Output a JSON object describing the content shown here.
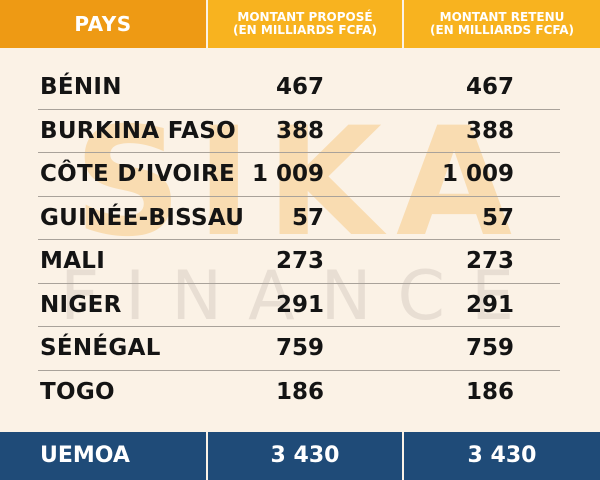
{
  "header": {
    "col_country": "PAYS",
    "col_proposed_line1": "MONTANT PROPOSÉ",
    "col_proposed_line2": "(EN MILLIARDS FCFA)",
    "col_retained_line1": "MONTANT RETENU",
    "col_retained_line2": "(EN MILLIARDS FCFA)"
  },
  "watermark": {
    "line1": "SIKA",
    "line2": "FINANCE"
  },
  "rows": [
    {
      "country": "BÉNIN",
      "proposed": "467",
      "retained": "467"
    },
    {
      "country": "BURKINA FASO",
      "proposed": "388",
      "retained": "388"
    },
    {
      "country": "CÔTE D’IVOIRE",
      "proposed": "1 009",
      "retained": "1 009"
    },
    {
      "country": "GUINÉE-BISSAU",
      "proposed": "57",
      "retained": "57"
    },
    {
      "country": "MALI",
      "proposed": "273",
      "retained": "273"
    },
    {
      "country": "NIGER",
      "proposed": "291",
      "retained": "291"
    },
    {
      "country": "SÉNÉGAL",
      "proposed": "759",
      "retained": "759"
    },
    {
      "country": "TOGO",
      "proposed": "186",
      "retained": "186"
    }
  ],
  "total": {
    "label": "UEMOA",
    "proposed": "3 430",
    "retained": "3 430"
  },
  "colors": {
    "header_country_bg": "#ee9a14",
    "header_amount_bg": "#f8b31f",
    "body_bg": "#fbf2e6",
    "total_bg": "#1f4b78",
    "row_separator": "#a9a29a"
  }
}
